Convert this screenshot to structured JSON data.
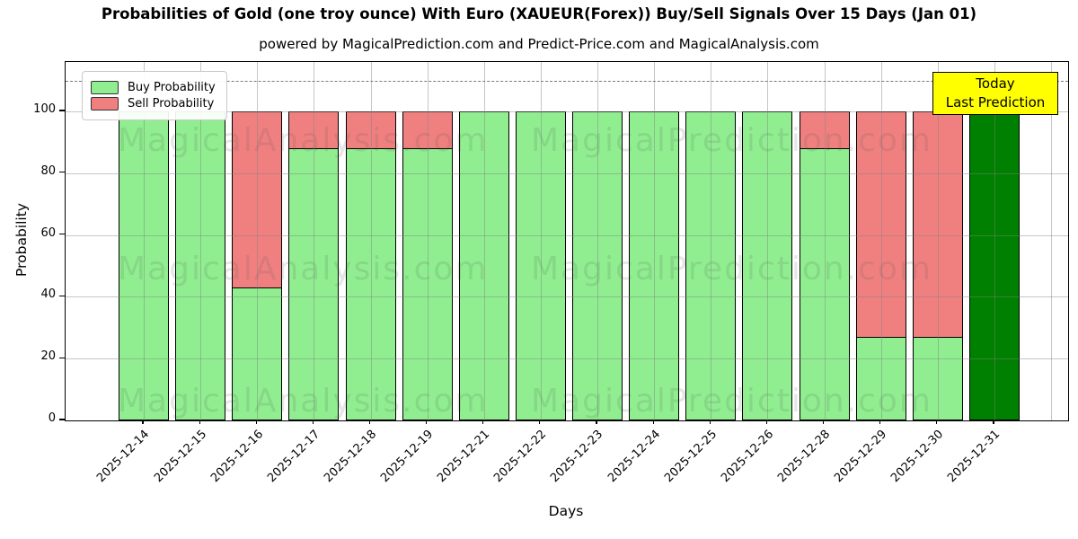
{
  "title": "Probabilities of Gold (one troy ounce) With Euro (XAUEUR(Forex)) Buy/Sell Signals Over 15 Days (Jan 01)",
  "subtitle": "powered by MagicalPrediction.com and Predict-Price.com and MagicalAnalysis.com",
  "legend": {
    "items": [
      {
        "label": "Buy Probability",
        "color": "#90ee90"
      },
      {
        "label": "Sell Probability",
        "color": "#f08080"
      }
    ]
  },
  "annotation": {
    "line1": "Today",
    "line2": "Last Prediction",
    "bg": "#ffff00"
  },
  "axes": {
    "xlabel": "Days",
    "ylabel": "Probability",
    "yticks": [
      0,
      20,
      40,
      60,
      80,
      100
    ]
  },
  "watermarks": {
    "left": "MagicalAnalysis.com",
    "right": "MagicalPrediction.com"
  },
  "colors": {
    "buy": "#90ee90",
    "sell": "#f08080",
    "today_bar": "#008000",
    "edge": "#000000",
    "grid": "#b0b0b0",
    "annotation_bg": "#ffff00"
  },
  "chart_data": {
    "type": "bar",
    "stacked": true,
    "title": "Probabilities of Gold (one troy ounce) With Euro (XAUEUR(Forex)) Buy/Sell Signals Over 15 Days (Jan 01)",
    "xlabel": "Days",
    "ylabel": "Probability",
    "categories": [
      "2025-12-14",
      "2025-12-15",
      "2025-12-16",
      "2025-12-17",
      "2025-12-18",
      "2025-12-19",
      "2025-12-21",
      "2025-12-22",
      "2025-12-23",
      "2025-12-24",
      "2025-12-25",
      "2025-12-26",
      "2025-12-28",
      "2025-12-29",
      "2025-12-30",
      "2025-12-31"
    ],
    "series": [
      {
        "name": "Buy Probability",
        "color": "#90ee90",
        "values": [
          100,
          100,
          43,
          88,
          88,
          88,
          100,
          100,
          100,
          100,
          100,
          100,
          88,
          27,
          27,
          100
        ]
      },
      {
        "name": "Sell Probability",
        "color": "#f08080",
        "values": [
          0,
          0,
          57,
          12,
          12,
          12,
          0,
          0,
          0,
          0,
          0,
          0,
          12,
          73,
          73,
          0
        ]
      }
    ],
    "today_index": 15,
    "today_bar_color": "#008000",
    "yticks": [
      0,
      20,
      40,
      60,
      80,
      100
    ],
    "ylim": [
      0,
      116
    ],
    "dashed_line_y": 110,
    "grid": true,
    "legend_position": "upper left",
    "x_tick_rotation": 45
  }
}
